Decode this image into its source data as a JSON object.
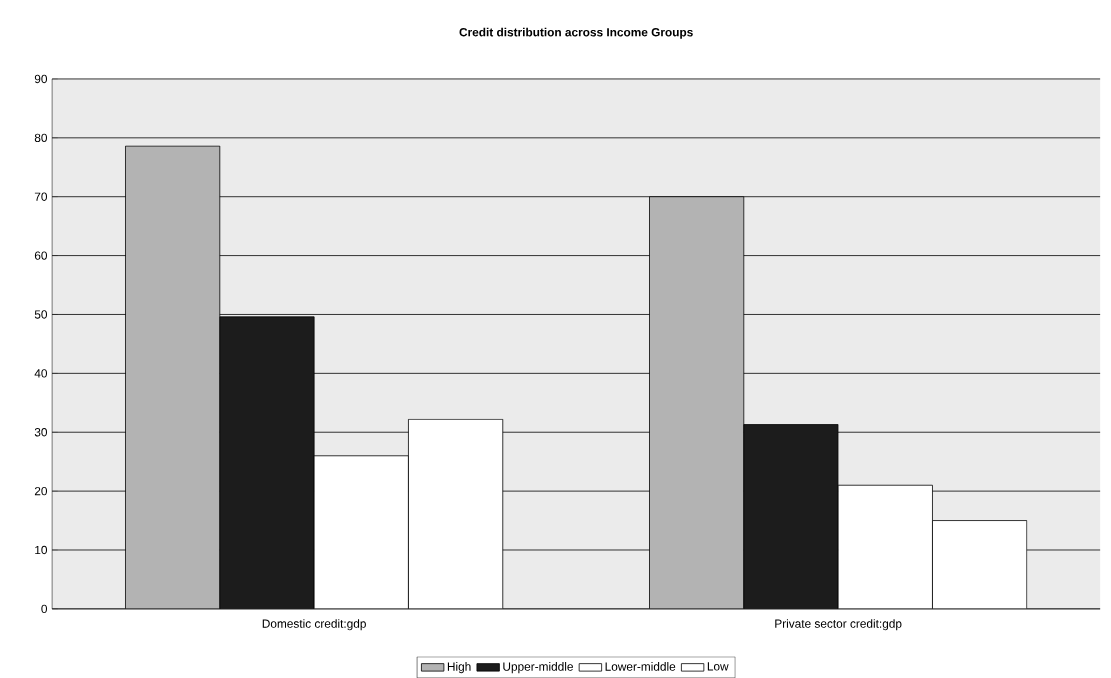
{
  "chart_data": {
    "type": "bar",
    "title": "Credit distribution across Income Groups",
    "categories": [
      "Domestic credit:gdp",
      "Private sector credit:gdp"
    ],
    "series": [
      {
        "name": "High",
        "color": "#b3b3b3",
        "values": [
          78.6,
          70.0
        ]
      },
      {
        "name": "Upper-middle",
        "color": "#1c1c1c",
        "values": [
          49.6,
          31.3
        ]
      },
      {
        "name": "Lower-middle",
        "color": "#ffffff",
        "values": [
          26.0,
          21.0
        ]
      },
      {
        "name": "Low",
        "color": "#ffffff",
        "values": [
          32.2,
          15.0
        ]
      }
    ],
    "ylim": [
      0,
      90
    ],
    "yticks": [
      0,
      10,
      20,
      30,
      40,
      50,
      60,
      70,
      80,
      90
    ],
    "grid": "y",
    "legend": "bottom"
  }
}
